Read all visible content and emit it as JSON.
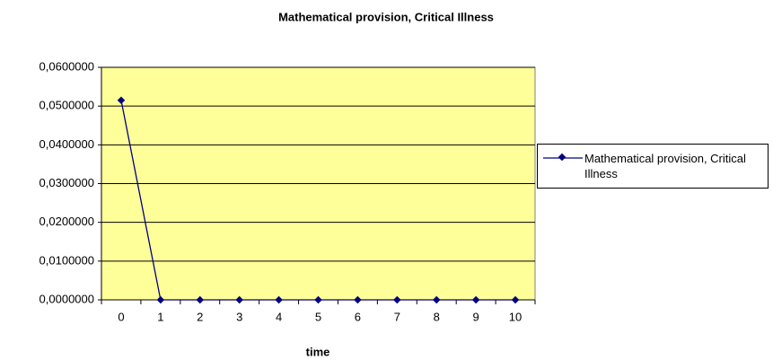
{
  "chart_data": {
    "type": "line",
    "title": "Mathematical provision, Critical Illness",
    "x_label": "time",
    "categories": [
      "0",
      "1",
      "2",
      "3",
      "4",
      "5",
      "6",
      "7",
      "8",
      "9",
      "10"
    ],
    "series": [
      {
        "name": "Mathematical provision, Critical Illness",
        "color": "#000080",
        "values": [
          0.0515,
          0,
          0,
          0,
          0,
          0,
          0,
          0,
          0,
          0,
          0
        ]
      }
    ],
    "ylim": [
      0,
      0.06
    ],
    "yticks": [
      {
        "value": 0,
        "label": "0,0000000"
      },
      {
        "value": 0.01,
        "label": "0,0100000"
      },
      {
        "value": 0.02,
        "label": "0,0200000"
      },
      {
        "value": 0.03,
        "label": "0,0300000"
      },
      {
        "value": 0.04,
        "label": "0,0400000"
      },
      {
        "value": 0.05,
        "label": "0,0500000"
      },
      {
        "value": 0.06,
        "label": "0,0600000"
      }
    ],
    "grid": true,
    "plot_background": "#ffff99",
    "legend_position": "right"
  }
}
